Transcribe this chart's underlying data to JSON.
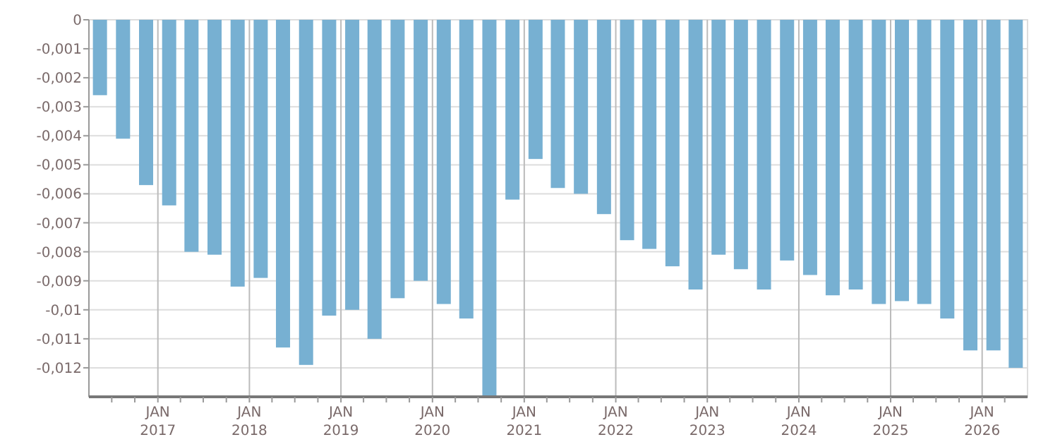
{
  "chart_data": {
    "type": "bar",
    "x": [
      "2016-05-15",
      "2016-08-15",
      "2016-11-15",
      "2017-02-15",
      "2017-05-15",
      "2017-08-15",
      "2017-11-15",
      "2018-02-15",
      "2018-05-15",
      "2018-08-15",
      "2018-11-15",
      "2019-02-15",
      "2019-05-15",
      "2019-08-15",
      "2019-11-15",
      "2020-02-15",
      "2020-05-15",
      "2020-08-15",
      "2020-11-15",
      "2021-02-15",
      "2021-05-15",
      "2021-08-15",
      "2021-11-15",
      "2022-02-15",
      "2022-05-15",
      "2022-08-15",
      "2022-11-15",
      "2023-02-15",
      "2023-05-15",
      "2023-08-15",
      "2023-11-15",
      "2024-02-15",
      "2024-05-15",
      "2024-08-15",
      "2024-11-15",
      "2025-02-15",
      "2025-05-15",
      "2025-08-15",
      "2025-11-15",
      "2026-02-15",
      "2026-05-15"
    ],
    "values": [
      -0.0026,
      -0.0041,
      -0.0057,
      -0.0064,
      -0.008,
      -0.0081,
      -0.0092,
      -0.0089,
      -0.0113,
      -0.0119,
      -0.0102,
      -0.01,
      -0.011,
      -0.0096,
      -0.009,
      -0.0098,
      -0.0103,
      -0.013,
      -0.0062,
      -0.0048,
      -0.0058,
      -0.006,
      -0.0067,
      -0.0076,
      -0.0079,
      -0.0085,
      -0.0093,
      -0.0081,
      -0.0086,
      -0.0093,
      -0.0083,
      -0.0088,
      -0.0095,
      -0.0093,
      -0.0098,
      -0.0097,
      -0.0098,
      -0.0103,
      -0.0114,
      -0.0114,
      -0.012
    ],
    "color": "#77b0d2",
    "ylim": [
      -0.013,
      0
    ],
    "yticks": [
      0,
      {
        "value": -0.001,
        "label": "-0,001"
      },
      {
        "value": -0.002,
        "label": "-0,002"
      },
      {
        "value": -0.003,
        "label": "-0,003"
      },
      {
        "value": -0.004,
        "label": "-0,004"
      },
      {
        "value": -0.005,
        "label": "-0,005"
      },
      {
        "value": -0.006,
        "label": "-0,006"
      },
      {
        "value": -0.007,
        "label": "-0,007"
      },
      {
        "value": -0.008,
        "label": "-0,008"
      },
      {
        "value": -0.009,
        "label": "-0,009"
      },
      {
        "value": -0.01,
        "label": "-0,01"
      },
      {
        "value": -0.011,
        "label": "-0,011"
      },
      {
        "value": -0.012,
        "label": "-0,012"
      }
    ],
    "xlim": [
      "2016-04-01",
      "2026-07-01"
    ],
    "xticks": [
      {
        "value": "2016-07-01",
        "label": null
      },
      {
        "value": "2016-10-01",
        "label": null
      },
      {
        "value": "2017-01-01",
        "label": "JAN\n2017"
      },
      {
        "value": "2017-04-01",
        "label": null
      },
      {
        "value": "2017-07-01",
        "label": null
      },
      {
        "value": "2017-10-01",
        "label": null
      },
      {
        "value": "2018-01-01",
        "label": "JAN\n2018"
      },
      {
        "value": "2018-04-01",
        "label": null
      },
      {
        "value": "2018-07-01",
        "label": null
      },
      {
        "value": "2018-10-01",
        "label": null
      },
      {
        "value": "2019-01-01",
        "label": "JAN\n2019"
      },
      {
        "value": "2019-04-01",
        "label": null
      },
      {
        "value": "2019-07-01",
        "label": null
      },
      {
        "value": "2019-10-01",
        "label": null
      },
      {
        "value": "2020-01-01",
        "label": "JAN\n2020"
      },
      {
        "value": "2020-04-01",
        "label": null
      },
      {
        "value": "2020-07-01",
        "label": null
      },
      {
        "value": "2020-10-01",
        "label": null
      },
      {
        "value": "2021-01-01",
        "label": "JAN\n2021"
      },
      {
        "value": "2021-04-01",
        "label": null
      },
      {
        "value": "2021-07-01",
        "label": null
      },
      {
        "value": "2021-10-01",
        "label": null
      },
      {
        "value": "2022-01-01",
        "label": "JAN\n2022"
      },
      {
        "value": "2022-04-01",
        "label": null
      },
      {
        "value": "2022-07-01",
        "label": null
      },
      {
        "value": "2022-10-01",
        "label": null
      },
      {
        "value": "2023-01-01",
        "label": "JAN\n2023"
      },
      {
        "value": "2023-04-01",
        "label": null
      },
      {
        "value": "2023-07-01",
        "label": null
      },
      {
        "value": "2023-10-01",
        "label": null
      },
      {
        "value": "2024-01-01",
        "label": "JAN\n2024"
      },
      {
        "value": "2024-04-01",
        "label": null
      },
      {
        "value": "2024-07-01",
        "label": null
      },
      {
        "value": "2024-10-01",
        "label": null
      },
      {
        "value": "2025-01-01",
        "label": "JAN\n2025"
      },
      {
        "value": "2025-04-01",
        "label": null
      },
      {
        "value": "2025-07-01",
        "label": null
      },
      {
        "value": "2025-10-01",
        "label": null
      },
      {
        "value": "2026-01-01",
        "label": "JAN\n2026"
      },
      {
        "value": "2026-04-01",
        "label": null
      }
    ],
    "grid": true
  }
}
